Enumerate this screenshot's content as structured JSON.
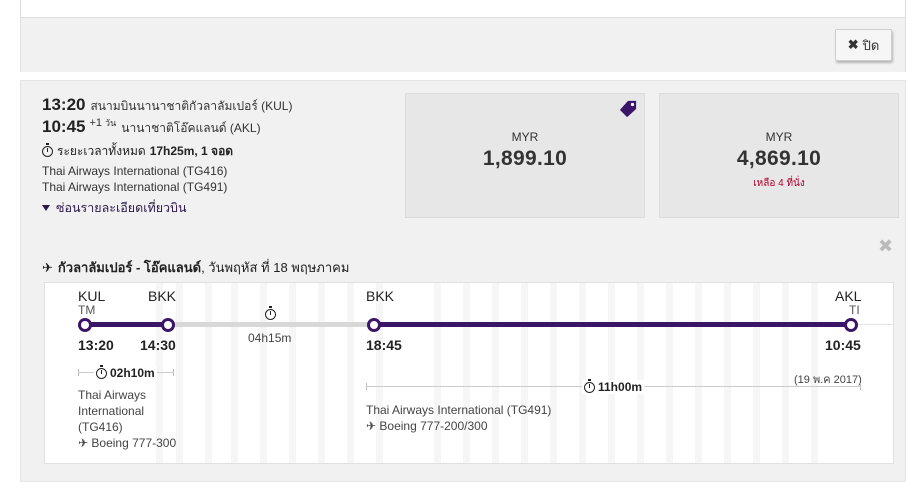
{
  "header": {
    "close_label": "ปิด"
  },
  "summary": {
    "depart_time": "13:20",
    "depart_airport": "สนามบินนานาชาติกัวลาลัมเปอร์ (KUL)",
    "arrive_time": "10:45",
    "plus_day_n": "+1",
    "plus_day_unit": "วัน",
    "arrive_airport": "นานาชาติโอ๊คแลนด์ (AKL)",
    "duration_prefix": "ระยะเวลาทั้งหมด",
    "duration_value": "17h25m, 1 จอด",
    "airline_1": "Thai Airways International (TG416)",
    "airline_2": "Thai Airways International (TG491)",
    "toggle_label": "ซ่อนรายละเอียดเที่ยวบิน"
  },
  "prices": [
    {
      "currency": "MYR",
      "amount": "1,899.10",
      "note": ""
    },
    {
      "currency": "MYR",
      "amount": "4,869.10",
      "note": "เหลือ 4 ที่นั่ง"
    }
  ],
  "route": {
    "title": "กัวลาลัมเปอร์ - โอ๊คแลนด์",
    "date": ", วันพฤหัส ที่ 18 พฤษภาคม"
  },
  "timeline": {
    "seg1": {
      "from_code": "KUL",
      "from_term": "TM",
      "to_code": "BKK",
      "dep": "13:20",
      "arr": "14:30",
      "duration": "02h10m",
      "airline_l1": "Thai Airways",
      "airline_l2": "International",
      "airline_l3": "(TG416)",
      "aircraft": "Boeing 777-300"
    },
    "layover": {
      "duration": "04h15m"
    },
    "seg2": {
      "from_code": "BKK",
      "to_code": "AKL",
      "to_term": "TI",
      "dep": "18:45",
      "arr": "10:45",
      "arr_date": "(19 พ.ค 2017)",
      "duration": "11h00m",
      "airline": "Thai Airways International (TG491)",
      "aircraft": "Boeing 777-200/300"
    }
  },
  "colors": {
    "brand": "#3b1668",
    "seats_left": "#b0002b"
  }
}
